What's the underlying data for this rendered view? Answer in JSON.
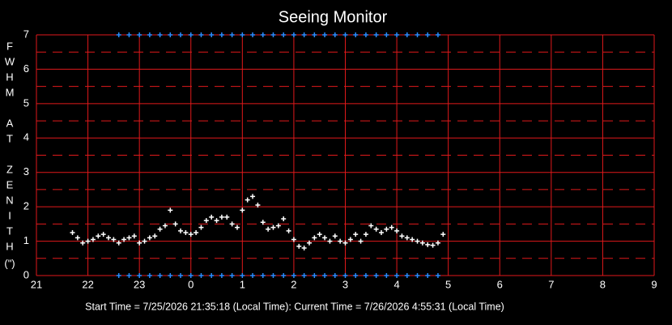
{
  "chart_data": {
    "type": "scatter",
    "title": "Seeing Monitor",
    "ylabel_letters": [
      "F",
      "W",
      "H",
      "M",
      "A",
      "T",
      "Z",
      "E",
      "N",
      "I",
      "T",
      "H",
      "(\")"
    ],
    "footer": "Start Time = 7/25/2026 21:35:18 (Local Time):  Current Time = 7/26/2026 4:55:31 (Local Time)",
    "xlim": [
      21,
      33
    ],
    "xticks": [
      21,
      22,
      23,
      {
        "value": 24,
        "label": "0"
      },
      {
        "value": 25,
        "label": "1"
      },
      {
        "value": 26,
        "label": "2"
      },
      {
        "value": 27,
        "label": "3"
      },
      {
        "value": 28,
        "label": "4"
      },
      {
        "value": 29,
        "label": "5"
      },
      {
        "value": 30,
        "label": "6"
      },
      {
        "value": 31,
        "label": "7"
      },
      {
        "value": 32,
        "label": "8"
      },
      {
        "value": 33,
        "label": "9"
      }
    ],
    "ylim": [
      0,
      7
    ],
    "yticks": [
      0,
      1,
      2,
      3,
      4,
      5,
      6,
      7
    ],
    "yminor": [
      0.5,
      1.5,
      2.5,
      3.5,
      4.5,
      5.5,
      6.5
    ],
    "grid": true,
    "grid_color": "#e0191b",
    "series": [
      {
        "color": "#ffffff",
        "x": [
          21.7,
          21.8,
          21.9,
          22.0,
          22.1,
          22.2,
          22.3,
          22.4,
          22.5,
          22.6,
          22.7,
          22.8,
          22.9,
          23.0,
          23.1,
          23.2,
          23.3,
          23.4,
          23.5,
          23.6,
          23.7,
          23.8,
          23.9,
          24.0,
          24.1,
          24.2,
          24.3,
          24.4,
          24.5,
          24.6,
          24.7,
          24.8,
          24.9,
          25.0,
          25.1,
          25.2,
          25.3,
          25.4,
          25.5,
          25.6,
          25.7,
          25.8,
          25.9,
          26.0,
          26.1,
          26.2,
          26.3,
          26.4,
          26.5,
          26.6,
          26.7,
          26.8,
          26.9,
          27.0,
          27.1,
          27.2,
          27.3,
          27.4,
          27.5,
          27.6,
          27.7,
          27.8,
          27.9,
          28.0,
          28.1,
          28.2,
          28.3,
          28.4,
          28.5,
          28.6,
          28.7,
          28.8,
          28.9
        ],
        "values": [
          1.25,
          1.1,
          0.95,
          1.0,
          1.05,
          1.15,
          1.2,
          1.1,
          1.05,
          0.95,
          1.05,
          1.1,
          1.15,
          0.95,
          1.0,
          1.1,
          1.15,
          1.35,
          1.45,
          1.9,
          1.5,
          1.3,
          1.25,
          1.2,
          1.25,
          1.4,
          1.6,
          1.7,
          1.6,
          1.7,
          1.7,
          1.5,
          1.4,
          1.9,
          2.2,
          2.3,
          2.05,
          1.55,
          1.35,
          1.4,
          1.45,
          1.65,
          1.3,
          1.05,
          0.85,
          0.8,
          0.95,
          1.1,
          1.2,
          1.1,
          1.0,
          1.15,
          1.0,
          0.95,
          1.05,
          1.2,
          1.0,
          1.2,
          1.45,
          1.35,
          1.25,
          1.35,
          1.4,
          1.3,
          1.15,
          1.1,
          1.05,
          1.0,
          0.95,
          0.9,
          0.88,
          0.95,
          1.2
        ]
      },
      {
        "color": "#2a8cff",
        "x": [
          22.6,
          22.8,
          23.0,
          23.2,
          23.4,
          23.6,
          23.8,
          24.0,
          24.2,
          24.4,
          24.6,
          24.8,
          25.0,
          25.2,
          25.4,
          25.6,
          25.8,
          26.0,
          26.2,
          26.4,
          26.6,
          26.8,
          27.0,
          27.2,
          27.4,
          27.6,
          27.8,
          28.0,
          28.2,
          28.4,
          28.6,
          28.8
        ],
        "values": [
          7,
          7,
          7,
          7,
          7,
          7,
          7,
          7,
          7,
          7,
          7,
          7,
          7,
          7,
          7,
          7,
          7,
          7,
          7,
          7,
          7,
          7,
          7,
          7,
          7,
          7,
          7,
          7,
          7,
          7,
          7,
          7
        ]
      },
      {
        "color": "#2a8cff",
        "x": [
          22.6,
          22.8,
          23.0,
          23.2,
          23.4,
          23.6,
          23.8,
          24.0,
          24.2,
          24.4,
          24.6,
          24.8,
          25.0,
          25.2,
          25.4,
          25.6,
          25.8,
          26.0,
          26.2,
          26.4,
          26.6,
          26.8,
          27.0,
          27.2,
          27.4,
          27.6,
          27.8,
          28.0,
          28.2,
          28.4,
          28.6,
          28.8
        ],
        "values": [
          0,
          0,
          0,
          0,
          0,
          0,
          0,
          0,
          0,
          0,
          0,
          0,
          0,
          0,
          0,
          0,
          0,
          0,
          0,
          0,
          0,
          0,
          0,
          0,
          0,
          0,
          0,
          0,
          0,
          0,
          0,
          0
        ]
      }
    ]
  }
}
